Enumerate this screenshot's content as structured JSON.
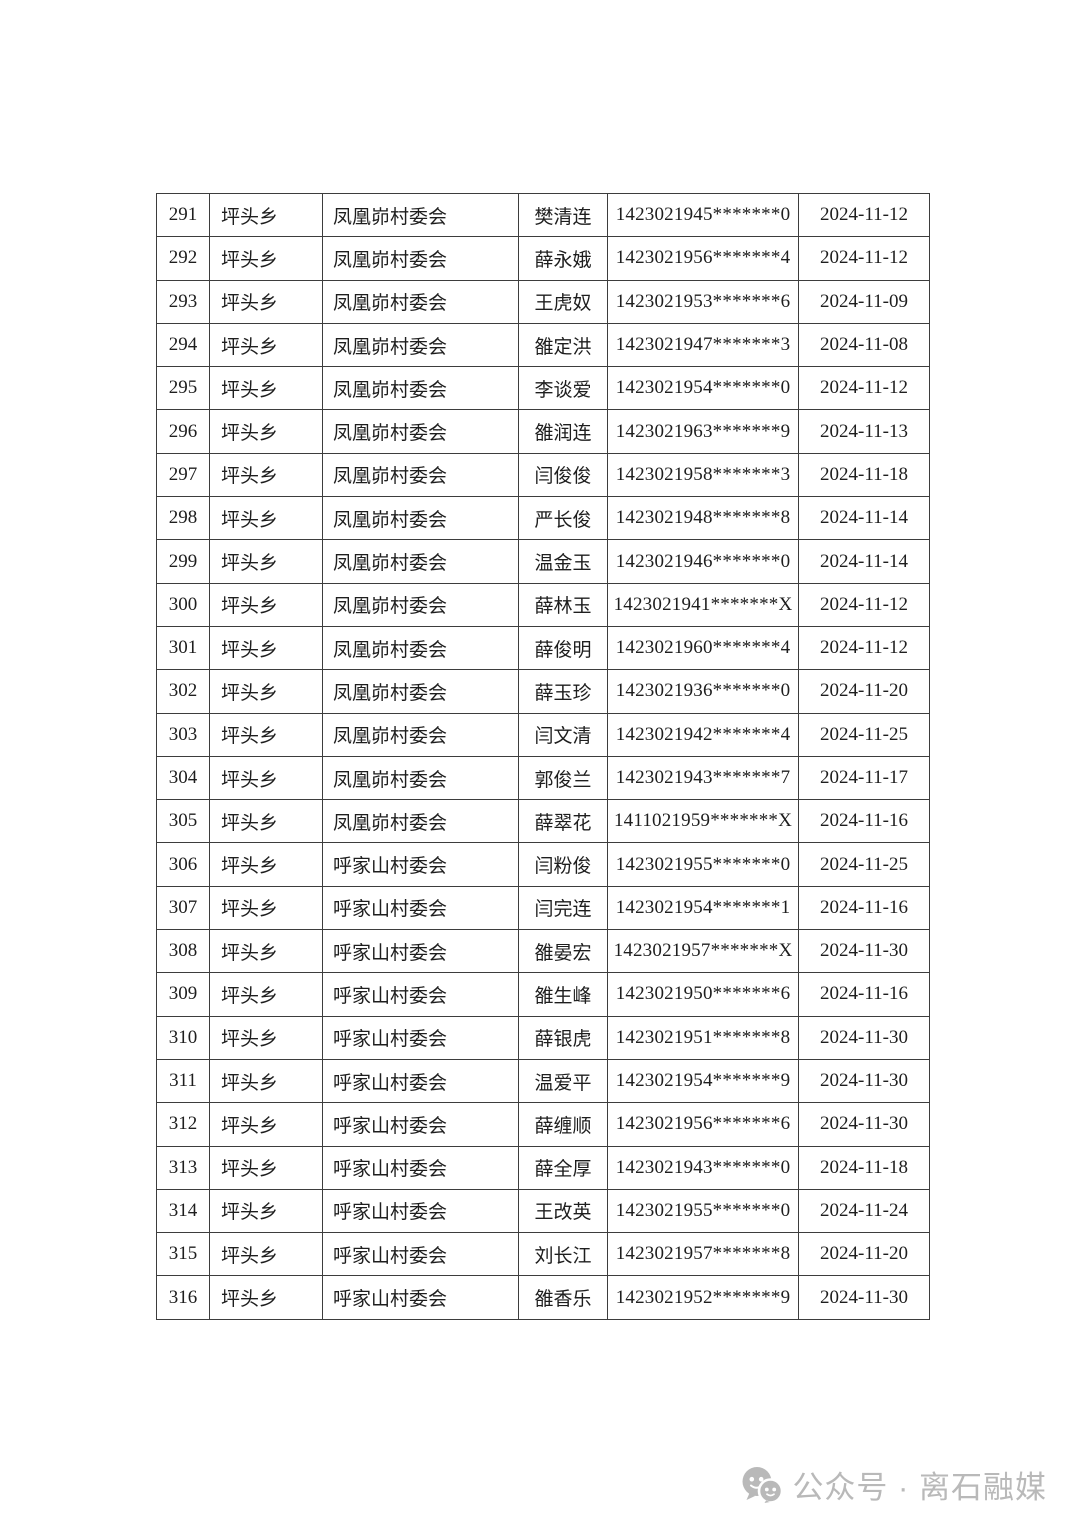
{
  "page": {
    "background": "#ffffff"
  },
  "colors": {
    "table_text": "#1e1e1e",
    "table_border": "#3d3d3d",
    "footer_gray": "#b9b9b9"
  },
  "table": {
    "rows": [
      [
        "291",
        "坪头乡",
        "凤凰峁村委会",
        "樊清连",
        "1423021945*******0",
        "2024-11-12"
      ],
      [
        "292",
        "坪头乡",
        "凤凰峁村委会",
        "薛永娥",
        "1423021956*******4",
        "2024-11-12"
      ],
      [
        "293",
        "坪头乡",
        "凤凰峁村委会",
        "王虎奴",
        "1423021953*******6",
        "2024-11-09"
      ],
      [
        "294",
        "坪头乡",
        "凤凰峁村委会",
        "雒定洪",
        "1423021947*******3",
        "2024-11-08"
      ],
      [
        "295",
        "坪头乡",
        "凤凰峁村委会",
        "李谈爱",
        "1423021954*******0",
        "2024-11-12"
      ],
      [
        "296",
        "坪头乡",
        "凤凰峁村委会",
        "雒润连",
        "1423021963*******9",
        "2024-11-13"
      ],
      [
        "297",
        "坪头乡",
        "凤凰峁村委会",
        "闫俊俊",
        "1423021958*******3",
        "2024-11-18"
      ],
      [
        "298",
        "坪头乡",
        "凤凰峁村委会",
        "严长俊",
        "1423021948*******8",
        "2024-11-14"
      ],
      [
        "299",
        "坪头乡",
        "凤凰峁村委会",
        "温金玉",
        "1423021946*******0",
        "2024-11-14"
      ],
      [
        "300",
        "坪头乡",
        "凤凰峁村委会",
        "薛林玉",
        "1423021941*******X",
        "2024-11-12"
      ],
      [
        "301",
        "坪头乡",
        "凤凰峁村委会",
        "薛俊明",
        "1423021960*******4",
        "2024-11-12"
      ],
      [
        "302",
        "坪头乡",
        "凤凰峁村委会",
        "薛玉珍",
        "1423021936*******0",
        "2024-11-20"
      ],
      [
        "303",
        "坪头乡",
        "凤凰峁村委会",
        "闫文清",
        "1423021942*******4",
        "2024-11-25"
      ],
      [
        "304",
        "坪头乡",
        "凤凰峁村委会",
        "郭俊兰",
        "1423021943*******7",
        "2024-11-17"
      ],
      [
        "305",
        "坪头乡",
        "凤凰峁村委会",
        "薛翠花",
        "1411021959*******X",
        "2024-11-16"
      ],
      [
        "306",
        "坪头乡",
        "呼家山村委会",
        "闫粉俊",
        "1423021955*******0",
        "2024-11-25"
      ],
      [
        "307",
        "坪头乡",
        "呼家山村委会",
        "闫完连",
        "1423021954*******1",
        "2024-11-16"
      ],
      [
        "308",
        "坪头乡",
        "呼家山村委会",
        "雒晏宏",
        "1423021957*******X",
        "2024-11-30"
      ],
      [
        "309",
        "坪头乡",
        "呼家山村委会",
        "雒生峰",
        "1423021950*******6",
        "2024-11-16"
      ],
      [
        "310",
        "坪头乡",
        "呼家山村委会",
        "薛银虎",
        "1423021951*******8",
        "2024-11-30"
      ],
      [
        "311",
        "坪头乡",
        "呼家山村委会",
        "温爱平",
        "1423021954*******9",
        "2024-11-30"
      ],
      [
        "312",
        "坪头乡",
        "呼家山村委会",
        "薛缠顺",
        "1423021956*******6",
        "2024-11-30"
      ],
      [
        "313",
        "坪头乡",
        "呼家山村委会",
        "薛全厚",
        "1423021943*******0",
        "2024-11-18"
      ],
      [
        "314",
        "坪头乡",
        "呼家山村委会",
        "王改英",
        "1423021955*******0",
        "2024-11-24"
      ],
      [
        "315",
        "坪头乡",
        "呼家山村委会",
        "刘长江",
        "1423021957*******8",
        "2024-11-20"
      ],
      [
        "316",
        "坪头乡",
        "呼家山村委会",
        "雒香乐",
        "1423021952*******9",
        "2024-11-30"
      ]
    ]
  },
  "footer": {
    "text": "公众号 · 离石融媒",
    "icon": "wechat-official-account-icon"
  }
}
